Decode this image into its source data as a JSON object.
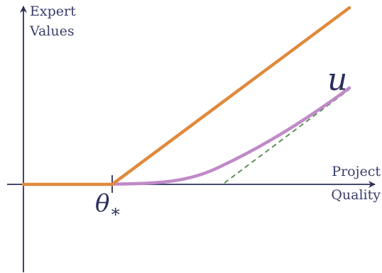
{
  "labels": {
    "y_axis_line1": "Expert",
    "y_axis_line2": "Values",
    "x_axis_line1": "Project",
    "x_axis_line2": "Quality",
    "threshold_symbol": "θ",
    "threshold_subscript": "∗",
    "curve_label": "u"
  },
  "colors": {
    "axis": "#2c2f5b",
    "label_text": "#3a3d6a",
    "orange_line": "#e08a3c",
    "purple_curve": "#c08ac8",
    "dashed_line": "#4e8a4a"
  }
}
